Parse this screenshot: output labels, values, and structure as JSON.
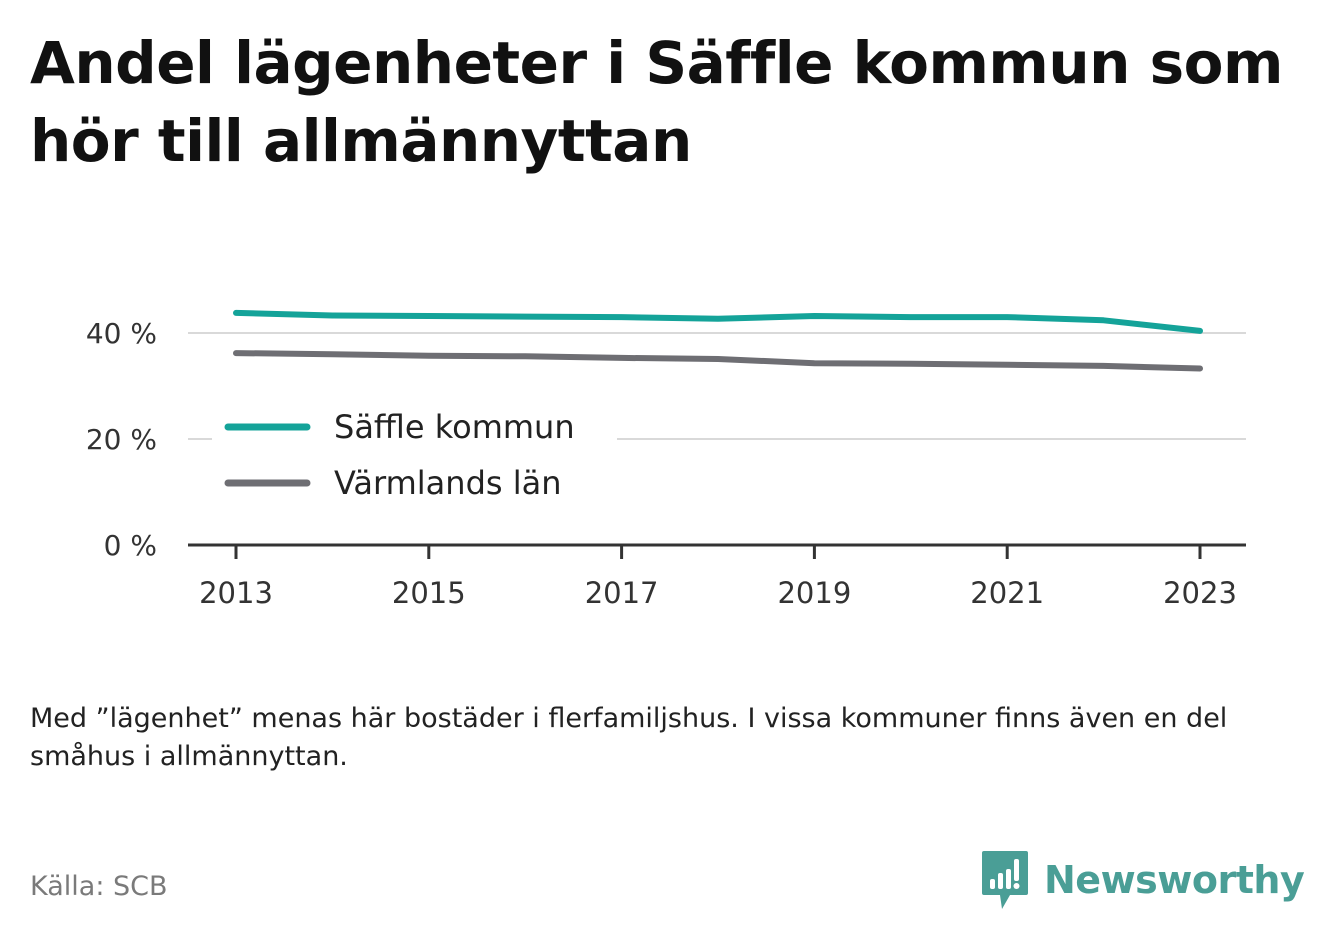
{
  "title": "Andel lägenheter i Säffle kommun som hör till allmännyttan",
  "note": "Med ”lägenhet” menas här bostäder i flerfamiljshus. I vissa kommuner finns även en del småhus i allmännyttan.",
  "source": "Källa: SCB",
  "brand": {
    "name": "Newsworthy",
    "icon": "newsworthy-logo-icon"
  },
  "colors": {
    "series_1": "#14a399",
    "series_2": "#6e6e73",
    "grid": "#d9d9d9",
    "axis": "#333333",
    "brand": "#4a9e96"
  },
  "chart_data": {
    "type": "line",
    "x": [
      2013,
      2014,
      2015,
      2016,
      2017,
      2018,
      2019,
      2020,
      2021,
      2022,
      2023
    ],
    "x_ticks": [
      2013,
      2015,
      2017,
      2019,
      2021,
      2023
    ],
    "x_tick_labels": [
      "2013",
      "2015",
      "2017",
      "2019",
      "2021",
      "2023"
    ],
    "y_ticks": [
      0,
      20,
      40
    ],
    "y_tick_labels": [
      "0 %",
      "20 %",
      "40 %"
    ],
    "ylim": [
      0,
      45
    ],
    "series": [
      {
        "name": "Säffle kommun",
        "color": "#14a399",
        "values": [
          43.8,
          43.3,
          43.2,
          43.1,
          43.0,
          42.7,
          43.2,
          43.0,
          43.0,
          42.4,
          40.4
        ]
      },
      {
        "name": "Värmlands län",
        "color": "#6e6e73",
        "values": [
          36.2,
          36.0,
          35.7,
          35.6,
          35.3,
          35.1,
          34.3,
          34.2,
          34.0,
          33.8,
          33.3
        ]
      }
    ],
    "grid": true,
    "legend_position": "bottom-left inside plot"
  }
}
